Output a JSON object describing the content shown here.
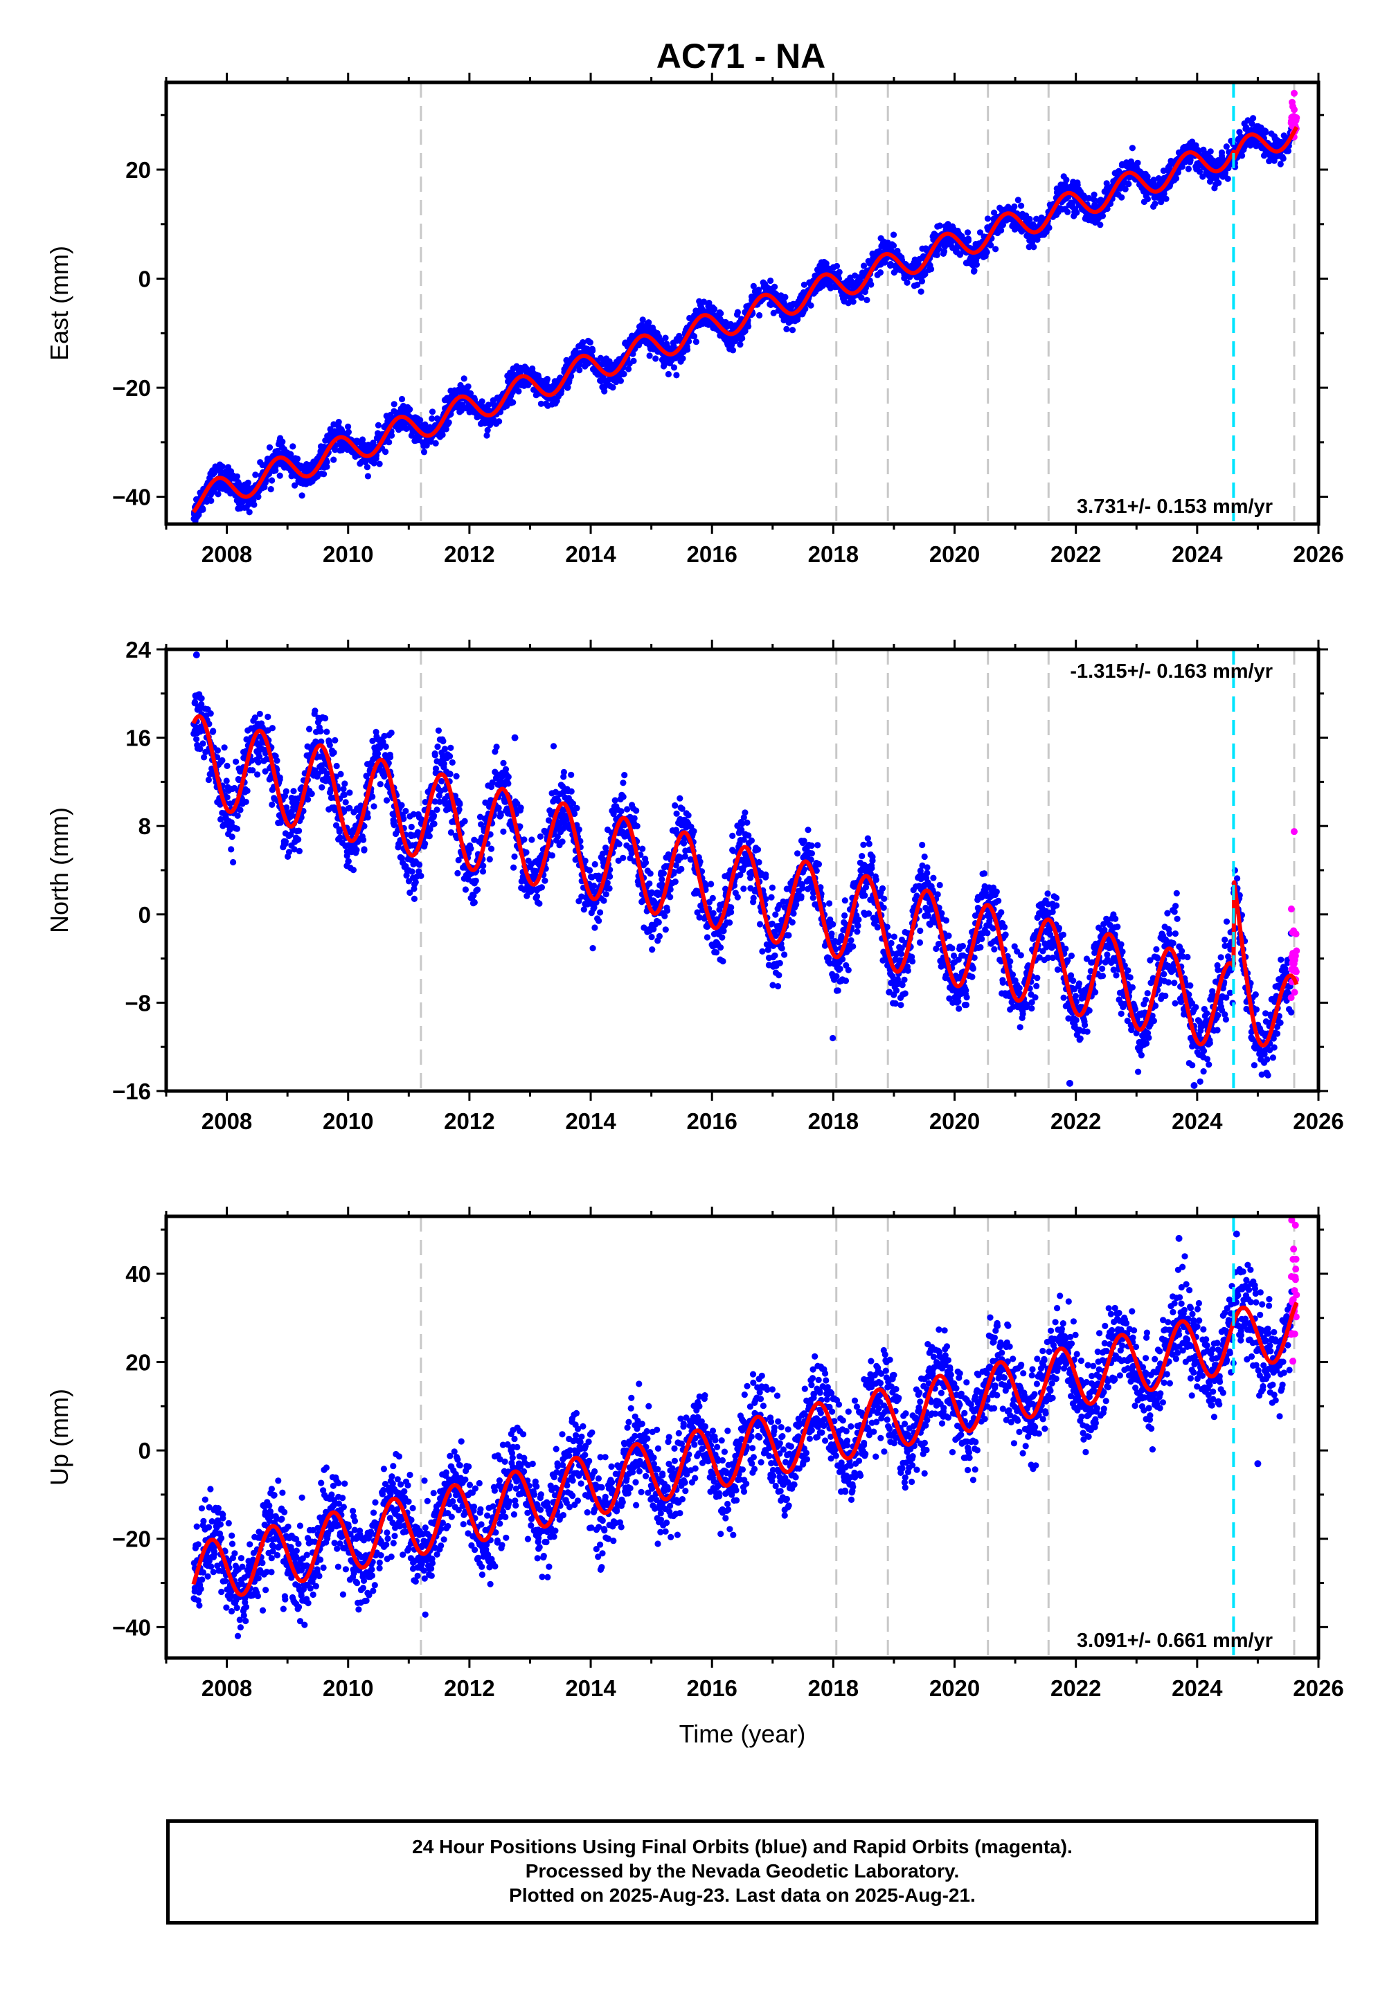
{
  "title": "AC71 - NA",
  "colors": {
    "final_orbits": "#0000ff",
    "rapid_orbits": "#ff00ff",
    "model": "#ff0000",
    "equipment_change": "#c8c8c8",
    "earthquake": "#00e5ff"
  },
  "chart_data": [
    {
      "type": "scatter",
      "panel": "east",
      "ylabel": "East (mm)",
      "xlim": [
        2007.0,
        2026.0
      ],
      "ylim": [
        -45,
        36
      ],
      "xticks": [
        2008,
        2010,
        2012,
        2014,
        2016,
        2018,
        2020,
        2022,
        2024,
        2026
      ],
      "xtick_labels": [
        "2008",
        "2010",
        "2012",
        "2014",
        "2016",
        "2018",
        "2020",
        "2022",
        "2024",
        "2026"
      ],
      "yticks": [
        -40,
        -20,
        0,
        20
      ],
      "ytick_labels": [
        "−40",
        "−20",
        "0",
        "20"
      ],
      "rate_text": "3.731+/- 0.153 mm/yr",
      "rate_position": "bottom-right",
      "equipment_change_epochs": [
        2011.2,
        2018.05,
        2018.9,
        2020.55,
        2021.55,
        2025.6
      ],
      "earthquake_epochs": [
        2024.6
      ],
      "data_start": 2007.45,
      "data_end": 2025.64,
      "rapid_start": 2025.55,
      "model": {
        "intercept_2007_5": -40.5,
        "trend_mm_per_yr": 3.731,
        "annual_amp": 2.6,
        "annual_peak": 0.85,
        "step_2024_6": -1.5
      },
      "scatter_sd": 1.3,
      "outliers": [
        [
          2025.6,
          34
        ],
        [
          2025.6,
          31
        ]
      ]
    },
    {
      "type": "scatter",
      "panel": "north",
      "ylabel": "North (mm)",
      "xlim": [
        2007.0,
        2026.0
      ],
      "ylim": [
        -16,
        24
      ],
      "xticks": [
        2008,
        2010,
        2012,
        2014,
        2016,
        2018,
        2020,
        2022,
        2024,
        2026
      ],
      "xtick_labels": [
        "2008",
        "2010",
        "2012",
        "2014",
        "2016",
        "2018",
        "2020",
        "2022",
        "2024",
        "2026"
      ],
      "yticks": [
        -16,
        -8,
        0,
        8,
        16,
        24
      ],
      "ytick_labels": [
        "−16",
        "−8",
        "0",
        "8",
        "16",
        "24"
      ],
      "rate_text": "-1.315+/- 0.163 mm/yr",
      "rate_position": "top-right",
      "equipment_change_epochs": [
        2011.2,
        2018.05,
        2018.9,
        2020.55,
        2021.55,
        2025.6
      ],
      "earthquake_epochs": [
        2024.6
      ],
      "data_start": 2007.45,
      "data_end": 2025.64,
      "rapid_start": 2025.55,
      "model": {
        "intercept_2007_5": 14.0,
        "trend_mm_per_yr": -1.315,
        "annual_amp": 4.0,
        "annual_peak": 0.55,
        "step_2024_6": 8.0
      },
      "scatter_sd": 1.6,
      "outliers": [
        [
          2012.75,
          16
        ],
        [
          2007.5,
          23.5
        ],
        [
          2025.6,
          7.5
        ],
        [
          2023.95,
          -15.5
        ],
        [
          2021.9,
          -15.3
        ]
      ]
    },
    {
      "type": "scatter",
      "panel": "up",
      "ylabel": "Up (mm)",
      "xlabel": "Time (year)",
      "xlim": [
        2007.0,
        2026.0
      ],
      "ylim": [
        -47,
        53
      ],
      "xticks": [
        2008,
        2010,
        2012,
        2014,
        2016,
        2018,
        2020,
        2022,
        2024,
        2026
      ],
      "xtick_labels": [
        "2008",
        "2010",
        "2012",
        "2014",
        "2016",
        "2018",
        "2020",
        "2022",
        "2024",
        "2026"
      ],
      "yticks": [
        -40,
        -20,
        0,
        20,
        40
      ],
      "ytick_labels": [
        "−40",
        "−20",
        "0",
        "20",
        "40"
      ],
      "rate_text": "3.091+/- 0.661 mm/yr",
      "rate_position": "bottom-right",
      "equipment_change_epochs": [
        2011.2,
        2018.05,
        2018.9,
        2020.55,
        2021.55,
        2025.6
      ],
      "earthquake_epochs": [
        2024.6
      ],
      "data_start": 2007.45,
      "data_end": 2025.64,
      "rapid_start": 2025.55,
      "model": {
        "intercept_2007_5": -28.0,
        "trend_mm_per_yr": 3.091,
        "annual_amp": 7.0,
        "annual_peak": 0.75,
        "step_2024_6": 0.0
      },
      "scatter_sd": 5.0,
      "outliers": [
        [
          2025.62,
          51
        ],
        [
          2024.65,
          49
        ],
        [
          2023.7,
          48
        ],
        [
          2025.0,
          -3
        ]
      ]
    }
  ],
  "footer": {
    "line1": "24 Hour Positions Using Final Orbits (blue) and Rapid Orbits (magenta).",
    "line2": "Processed by the Nevada Geodetic Laboratory.",
    "line3": "Plotted on 2025-Aug-23. Last data on 2025-Aug-21."
  }
}
